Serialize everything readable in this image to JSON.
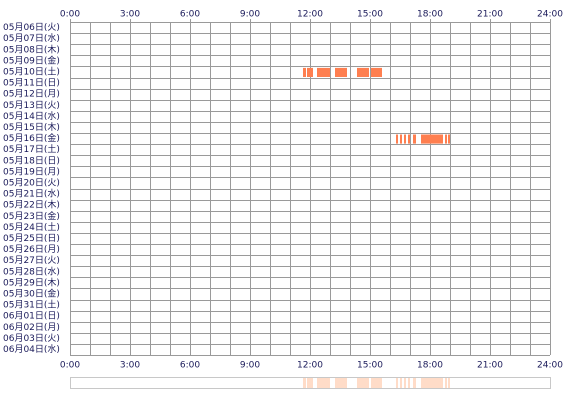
{
  "chart_data": {
    "type": "timeline",
    "categories": [
      "05月06日(火)",
      "05月07日(水)",
      "05月08日(木)",
      "05月09日(金)",
      "05月10日(土)",
      "05月11日(日)",
      "05月12日(月)",
      "05月13日(火)",
      "05月14日(水)",
      "05月15日(木)",
      "05月16日(金)",
      "05月17日(土)",
      "05月18日(日)",
      "05月19日(月)",
      "05月20日(火)",
      "05月21日(水)",
      "05月22日(木)",
      "05月23日(金)",
      "05月24日(土)",
      "05月25日(日)",
      "05月26日(月)",
      "05月27日(火)",
      "05月28日(水)",
      "05月29日(木)",
      "05月30日(金)",
      "05月31日(土)",
      "06月01日(日)",
      "06月02日(月)",
      "06月03日(火)",
      "06月04日(水)"
    ],
    "xlim": [
      0,
      24
    ],
    "xticks": [
      {
        "value": 0,
        "label": "0:00"
      },
      {
        "value": 3,
        "label": "3:00"
      },
      {
        "value": 6,
        "label": "6:00"
      },
      {
        "value": 9,
        "label": "9:00"
      },
      {
        "value": 12,
        "label": "12:00"
      },
      {
        "value": 15,
        "label": "15:00"
      },
      {
        "value": 18,
        "label": "18:00"
      },
      {
        "value": 21,
        "label": "21:00"
      },
      {
        "value": 24,
        "label": "24:00"
      }
    ],
    "color": "#ff7f50",
    "overview_color": "#ffdcc8",
    "grid": true,
    "segments": [
      {
        "category": "05月10日(土)",
        "start": 11.65,
        "end": 11.8
      },
      {
        "category": "05月10日(土)",
        "start": 11.85,
        "end": 12.15
      },
      {
        "category": "05月10日(土)",
        "start": 12.35,
        "end": 13.0
      },
      {
        "category": "05月10日(土)",
        "start": 13.25,
        "end": 13.85
      },
      {
        "category": "05月10日(土)",
        "start": 14.35,
        "end": 14.95
      },
      {
        "category": "05月10日(土)",
        "start": 15.05,
        "end": 15.6
      },
      {
        "category": "05月16日(金)",
        "start": 16.3,
        "end": 16.4
      },
      {
        "category": "05月16日(金)",
        "start": 16.5,
        "end": 16.6
      },
      {
        "category": "05月16日(金)",
        "start": 16.7,
        "end": 16.8
      },
      {
        "category": "05月16日(金)",
        "start": 16.9,
        "end": 17.0
      },
      {
        "category": "05月16日(金)",
        "start": 17.15,
        "end": 17.3
      },
      {
        "category": "05月16日(金)",
        "start": 17.55,
        "end": 18.65
      },
      {
        "category": "05月16日(金)",
        "start": 18.75,
        "end": 18.85
      },
      {
        "category": "05月16日(金)",
        "start": 18.9,
        "end": 19.0
      }
    ]
  }
}
